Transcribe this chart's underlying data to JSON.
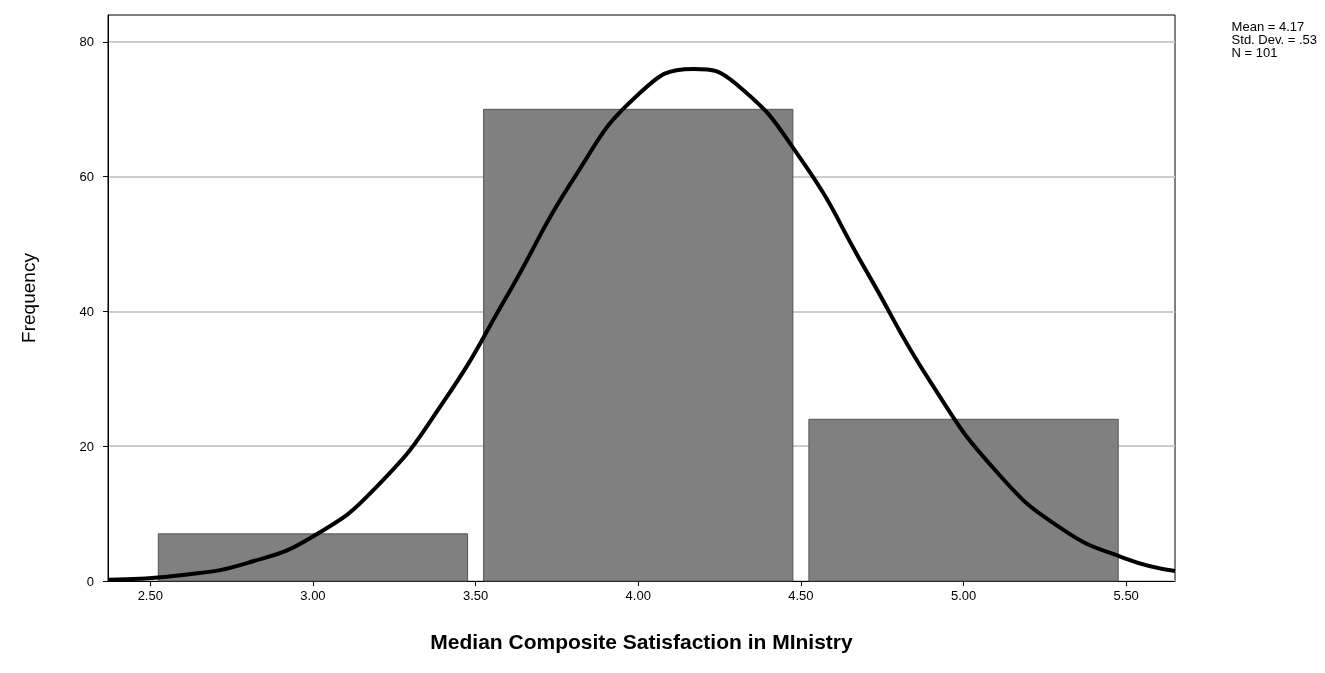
{
  "chart_data": {
    "type": "histogram",
    "xlabel": "Median Composite Satisfaction in MInistry",
    "ylabel": "Frequency",
    "annotations": [
      "Mean = 4.17",
      "Std. Dev. = .53",
      "N = 101"
    ],
    "series": [
      {
        "bins": [
          2.5,
          3.5,
          4.5,
          5.5
        ],
        "values": [
          7,
          70,
          24
        ],
        "color": "#808080"
      },
      {
        "type": "line",
        "color": "#000000",
        "marker": "none",
        "x": [
          2.37,
          2.6,
          2.8,
          3.0,
          3.2,
          3.4,
          3.6,
          3.8,
          4.0,
          4.17,
          4.3,
          4.5,
          4.7,
          4.9,
          5.1,
          5.3,
          5.5,
          5.65
        ],
        "values": [
          0.2,
          0.9,
          2.7,
          6.6,
          14.2,
          26.5,
          42.6,
          59.6,
          72.2,
          76,
          73.8,
          62.6,
          46.1,
          29.4,
          16.3,
          7.8,
          3.3,
          1.5
        ]
      }
    ],
    "xlim": [
      2.37,
      5.65
    ],
    "xticks": [
      {
        "value": 2.5,
        "label": "2.50"
      },
      {
        "value": 3,
        "label": "3.00"
      },
      {
        "value": 3.5,
        "label": "3.50"
      },
      {
        "value": 4,
        "label": "4.00"
      },
      {
        "value": 4.5,
        "label": "4.50"
      },
      {
        "value": 5,
        "label": "5.00"
      },
      {
        "value": 5.5,
        "label": "5.50"
      }
    ],
    "ylim": [
      0,
      84
    ],
    "yticks": [
      0,
      20,
      40,
      60,
      80
    ],
    "grid": "y"
  }
}
